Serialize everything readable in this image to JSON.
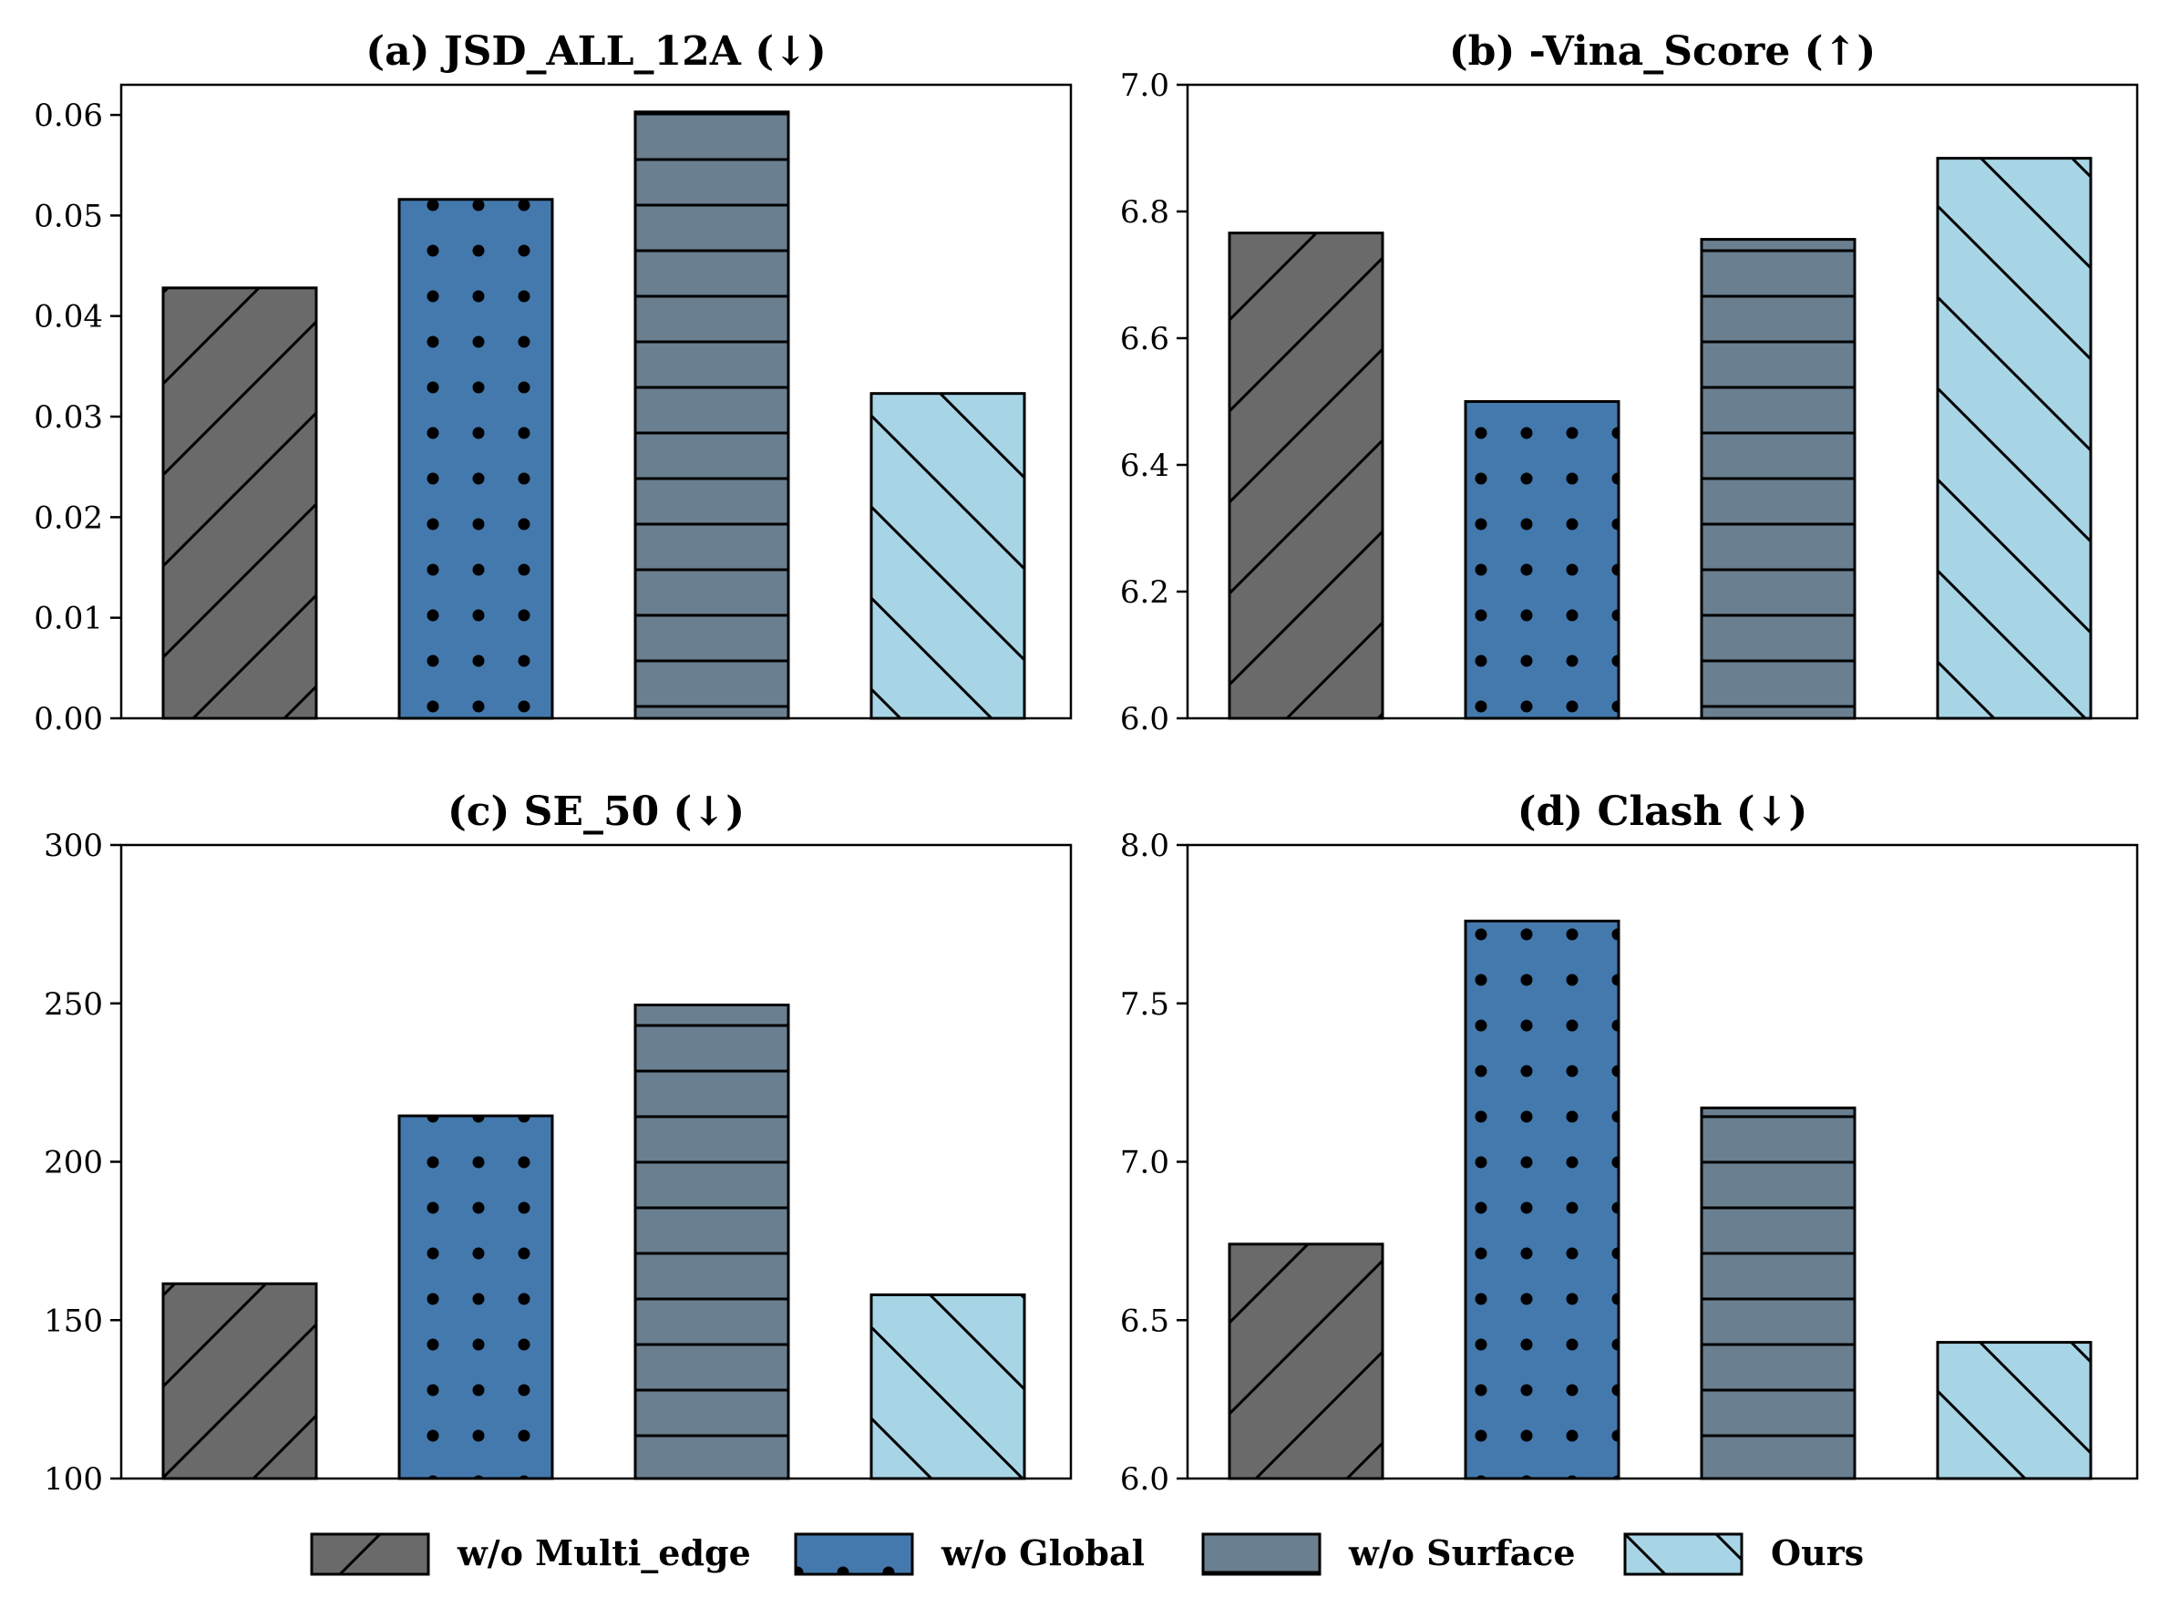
{
  "colors": {
    "w/o Multi_edge": "#6a6a6a",
    "w/o Global": "#4479ad",
    "w/o Surface": "#6a7f90",
    "Ours": "#a8d5e6"
  },
  "hatches": {
    "w/o Multi_edge": "forward-diagonal",
    "w/o Global": "dots",
    "w/o Surface": "horizontal",
    "Ours": "backward-diagonal"
  },
  "legend": {
    "items": [
      "w/o Multi_edge",
      "w/o Global",
      "w/o Surface",
      "Ours"
    ],
    "placement": "bottom-center"
  },
  "chart_data": [
    {
      "type": "bar",
      "title": "(a) JSD_ALL_12A (↓)",
      "categories": [
        "w/o Multi_edge",
        "w/o Global",
        "w/o Surface",
        "Ours"
      ],
      "values": [
        0.0428,
        0.0516,
        0.0603,
        0.0323
      ],
      "ylim": [
        0,
        0.063
      ],
      "yticks": [
        0.0,
        0.01,
        0.02,
        0.03,
        0.04,
        0.05,
        0.06
      ],
      "ytick_labels": [
        "0.00",
        "0.01",
        "0.02",
        "0.03",
        "0.04",
        "0.05",
        "0.06"
      ],
      "grid": false
    },
    {
      "type": "bar",
      "title": "(b) -Vina_Score (↑)",
      "categories": [
        "w/o Multi_edge",
        "w/o Global",
        "w/o Surface",
        "Ours"
      ],
      "values": [
        6.766,
        6.5,
        6.756,
        6.884
      ],
      "ylim": [
        6.0,
        7.0
      ],
      "yticks": [
        6.0,
        6.2,
        6.4,
        6.6,
        6.8,
        7.0
      ],
      "ytick_labels": [
        "6.0",
        "6.2",
        "6.4",
        "6.6",
        "6.8",
        "7.0"
      ],
      "grid": false
    },
    {
      "type": "bar",
      "title": "(c) SE_50 (↓)",
      "categories": [
        "w/o Multi_edge",
        "w/o Global",
        "w/o Surface",
        "Ours"
      ],
      "values": [
        161.5,
        214.5,
        249.5,
        158
      ],
      "ylim": [
        100,
        300
      ],
      "yticks": [
        100,
        150,
        200,
        250,
        300
      ],
      "ytick_labels": [
        "100",
        "150",
        "200",
        "250",
        "300"
      ],
      "grid": false
    },
    {
      "type": "bar",
      "title": "(d) Clash (↓)",
      "categories": [
        "w/o Multi_edge",
        "w/o Global",
        "w/o Surface",
        "Ours"
      ],
      "values": [
        6.74,
        7.76,
        7.17,
        6.43
      ],
      "ylim": [
        6.0,
        8.0
      ],
      "yticks": [
        6.0,
        6.5,
        7.0,
        7.5,
        8.0
      ],
      "ytick_labels": [
        "6.0",
        "6.5",
        "7.0",
        "7.5",
        "8.0"
      ],
      "grid": false
    }
  ]
}
